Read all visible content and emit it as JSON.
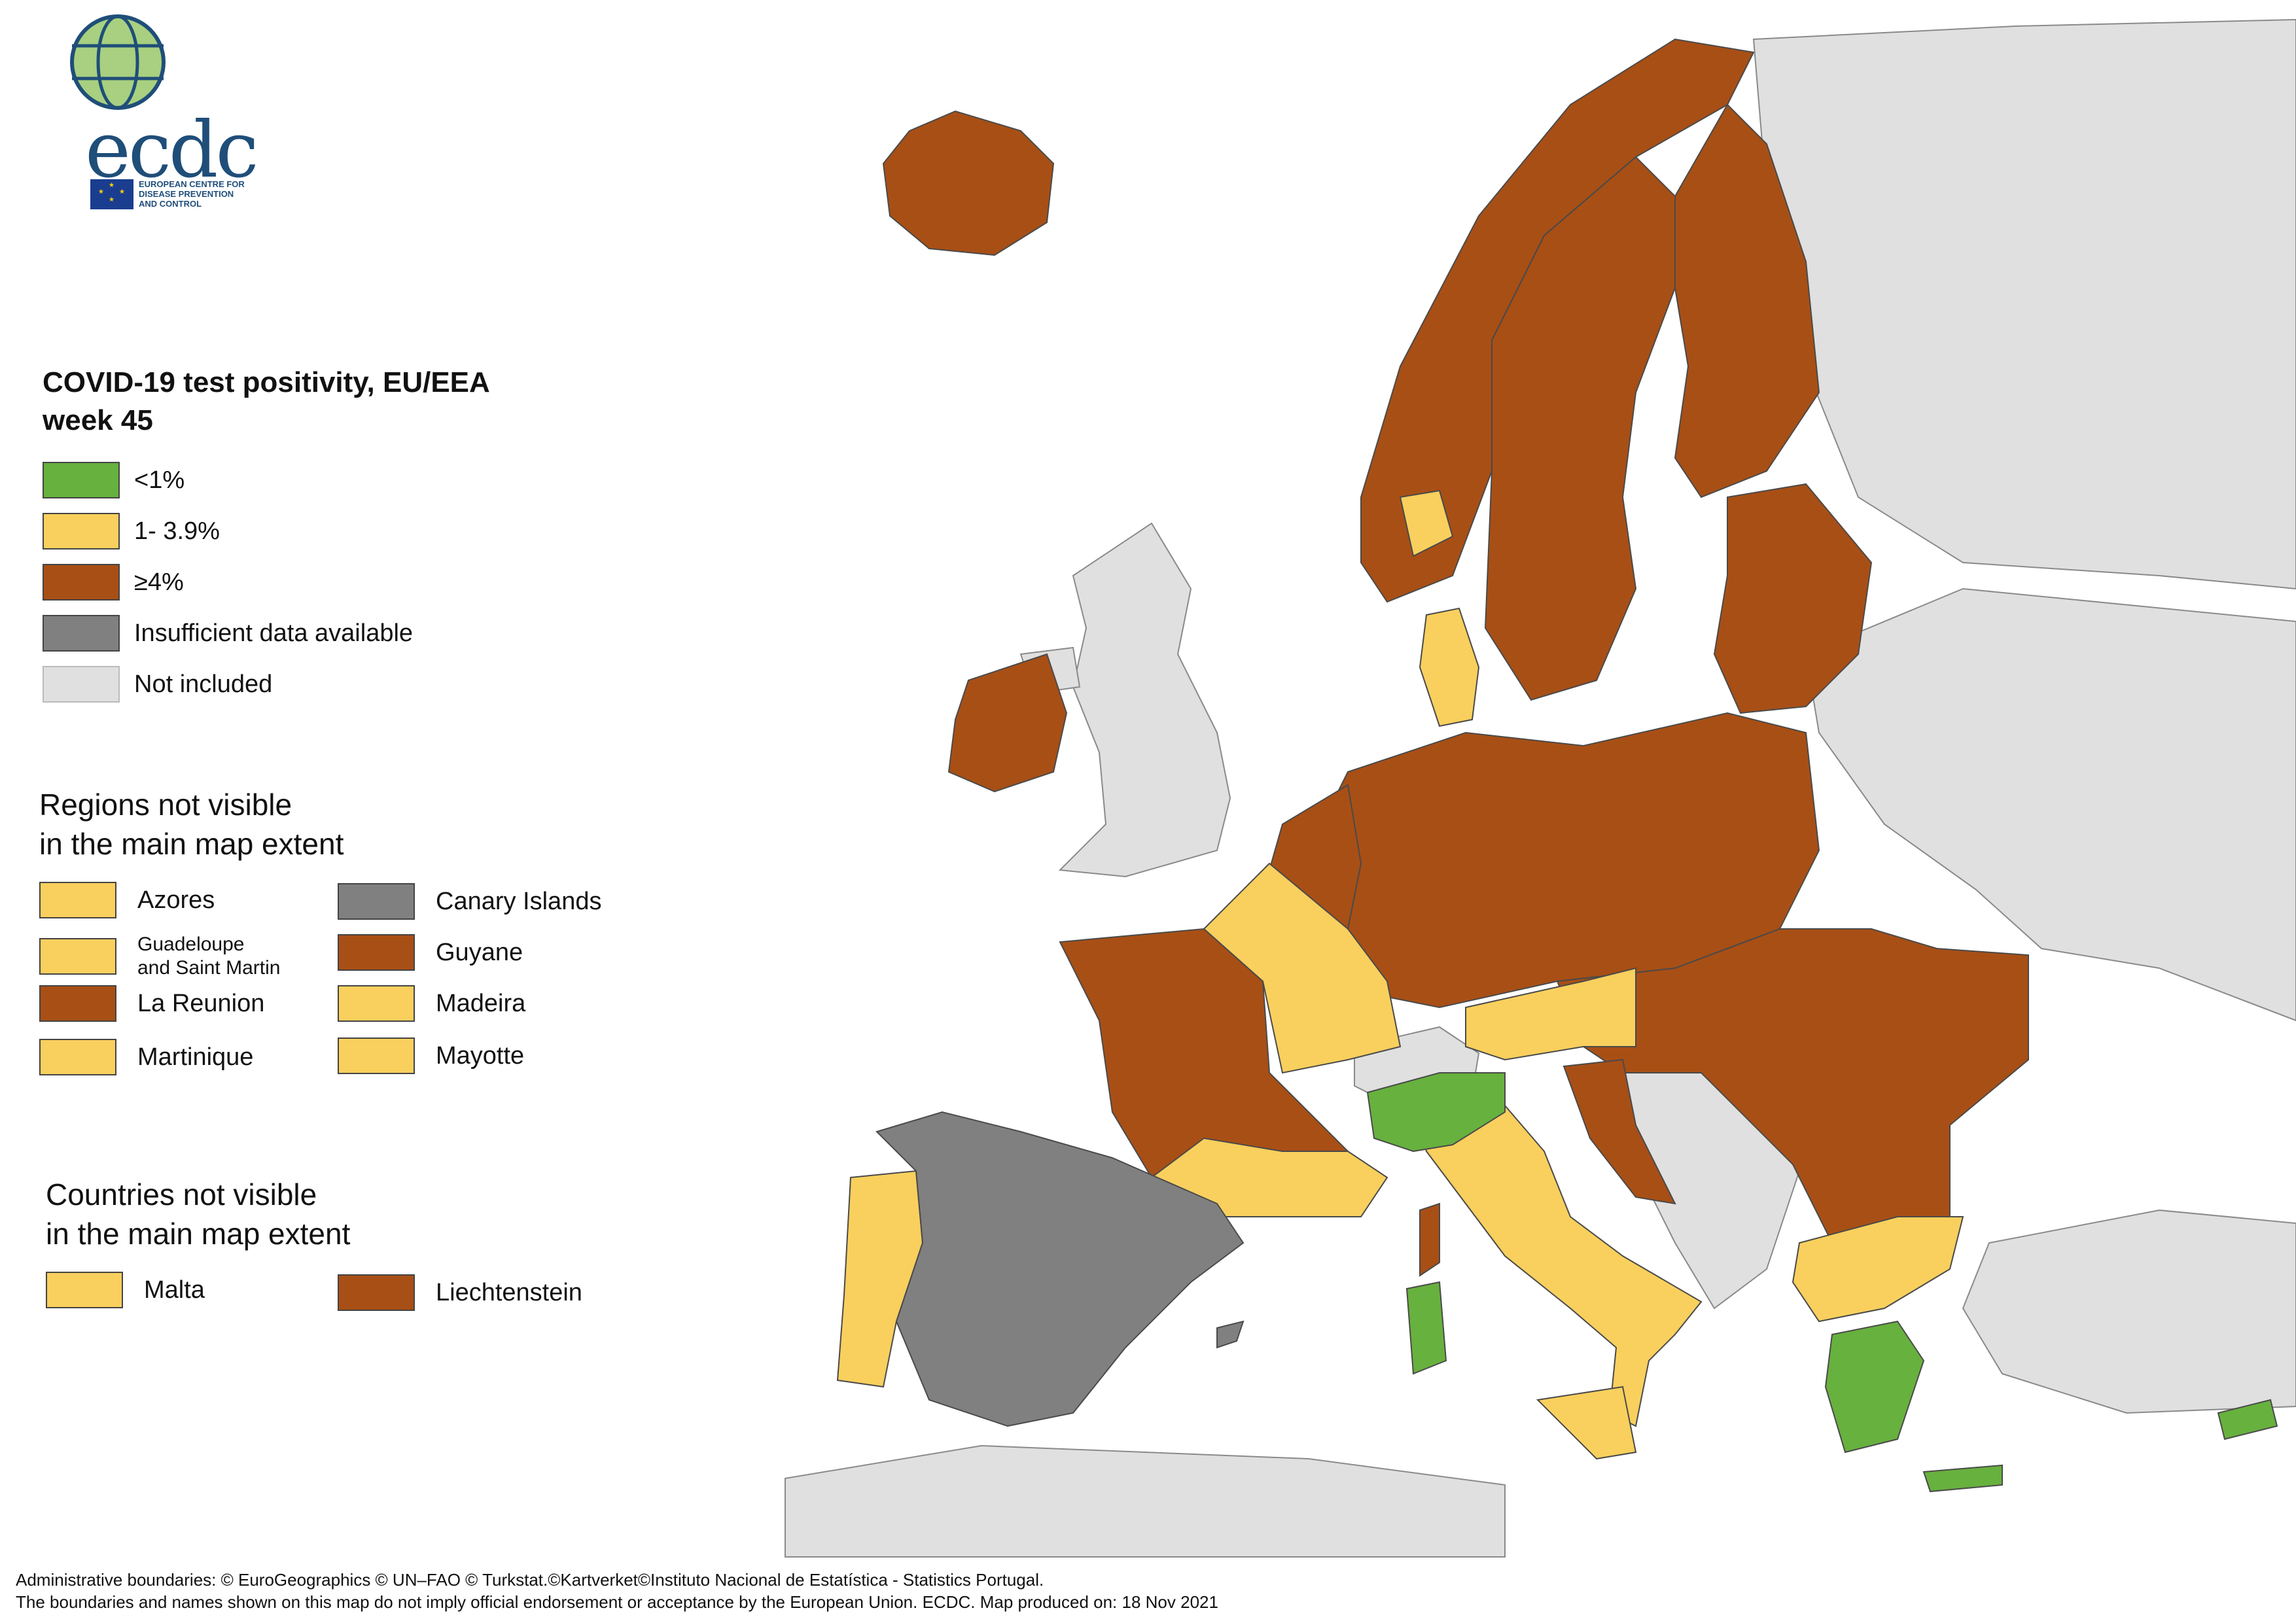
{
  "logo": {
    "name": "ecdc",
    "subtitle_lines": [
      "EUROPEAN CENTRE FOR",
      "DISEASE PREVENTION",
      "AND CONTROL"
    ]
  },
  "legend": {
    "title_line1": "COVID-19 test positivity, EU/EEA",
    "title_line2": "week 45",
    "items": [
      {
        "label": "<1%",
        "color": "#67b13e"
      },
      {
        "label": "1- 3.9%",
        "color": "#f9d05d"
      },
      {
        "label": "≥4%",
        "color": "#a84f15"
      },
      {
        "label": "Insufficient data available",
        "color": "#808080"
      },
      {
        "label": "Not included",
        "color": "#e0e0e0"
      }
    ]
  },
  "regions_box": {
    "title_line1": "Regions not visible",
    "title_line2": "in the main map extent",
    "items": [
      {
        "label": "Azores",
        "color": "#f9d05d"
      },
      {
        "label_line1": "Guadeloupe",
        "label_line2": "and Saint Martin",
        "color": "#f9d05d"
      },
      {
        "label": "La Reunion",
        "color": "#a84f15"
      },
      {
        "label": "Martinique",
        "color": "#f9d05d"
      },
      {
        "label": "Canary Islands",
        "color": "#808080"
      },
      {
        "label": "Guyane",
        "color": "#a84f15"
      },
      {
        "label": "Madeira",
        "color": "#f9d05d"
      },
      {
        "label": "Mayotte",
        "color": "#f9d05d"
      }
    ]
  },
  "countries_box": {
    "title_line1": "Countries not visible",
    "title_line2": "in the main map extent",
    "items": [
      {
        "label": "Malta",
        "color": "#f9d05d"
      },
      {
        "label": "Liechtenstein",
        "color": "#a84f15"
      }
    ]
  },
  "map_regions": [
    {
      "name": "Iceland",
      "category": "≥4%"
    },
    {
      "name": "Ireland",
      "category": "≥4%"
    },
    {
      "name": "Norway",
      "category": "≥4%"
    },
    {
      "name": "Sweden",
      "category": "≥4%"
    },
    {
      "name": "Finland",
      "category": "≥4%"
    },
    {
      "name": "Estonia",
      "category": "≥4%"
    },
    {
      "name": "Latvia",
      "category": "≥4%"
    },
    {
      "name": "Lithuania",
      "category": "≥4%"
    },
    {
      "name": "Poland",
      "category": "≥4%"
    },
    {
      "name": "Germany",
      "category": "≥4%"
    },
    {
      "name": "Netherlands",
      "category": "≥4%"
    },
    {
      "name": "Belgium",
      "category": "≥4%"
    },
    {
      "name": "Denmark",
      "category": "1- 3.9%"
    },
    {
      "name": "France West",
      "category": "≥4%"
    },
    {
      "name": "France North-East",
      "category": "1- 3.9%"
    },
    {
      "name": "France South",
      "category": "1- 3.9%"
    },
    {
      "name": "Spain",
      "category": "Insufficient data available"
    },
    {
      "name": "Portugal",
      "category": "1- 3.9%"
    },
    {
      "name": "Italy North-West",
      "category": "<1%"
    },
    {
      "name": "Italy",
      "category": "1- 3.9%"
    },
    {
      "name": "Sardinia",
      "category": "<1%"
    },
    {
      "name": "Corsica",
      "category": "≥4%"
    },
    {
      "name": "Sicily",
      "category": "1- 3.9%"
    },
    {
      "name": "Austria",
      "category": "1- 3.9%"
    },
    {
      "name": "Czechia",
      "category": "≥4%"
    },
    {
      "name": "Slovakia",
      "category": "≥4%"
    },
    {
      "name": "Hungary",
      "category": "≥4%"
    },
    {
      "name": "Slovenia",
      "category": "≥4%"
    },
    {
      "name": "Croatia",
      "category": "≥4%"
    },
    {
      "name": "Romania",
      "category": "≥4%"
    },
    {
      "name": "Bulgaria",
      "category": "≥4%"
    },
    {
      "name": "Greece North",
      "category": "1- 3.9%"
    },
    {
      "name": "Greece South",
      "category": "<1%"
    },
    {
      "name": "Cyprus",
      "category": "<1%"
    },
    {
      "name": "Crete",
      "category": "<1%"
    },
    {
      "name": "Switzerland",
      "category": "Not included"
    },
    {
      "name": "United Kingdom",
      "category": "Not included"
    }
  ],
  "footer": {
    "line1": "Administrative boundaries: © EuroGeographics © UN–FAO © Turkstat.©Kartverket©Instituto Nacional de Estatística - Statistics Portugal.",
    "line2": "The boundaries and names shown on this map do not imply official endorsement or acceptance by the European Union. ECDC. Map produced on: 18 Nov 2021"
  }
}
